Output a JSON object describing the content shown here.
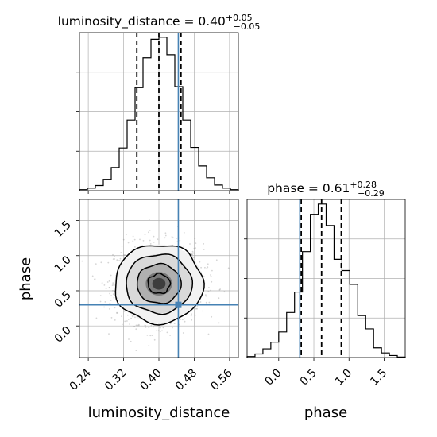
{
  "chart_data": [
    {
      "type": "histogram",
      "panel": "luminosity_distance marginal",
      "title_param": "luminosity_distance",
      "title_value": "0.40",
      "title_err_plus": "+0.05",
      "title_err_minus": "−0.05",
      "xlim": [
        0.22,
        0.58
      ],
      "bin_edges": [
        0.22,
        0.238,
        0.256,
        0.274,
        0.292,
        0.31,
        0.328,
        0.346,
        0.364,
        0.382,
        0.4,
        0.418,
        0.436,
        0.454,
        0.472,
        0.49,
        0.508,
        0.526,
        0.544,
        0.562,
        0.58
      ],
      "counts": [
        2,
        5,
        10,
        22,
        45,
        83,
        137,
        200,
        258,
        294,
        298,
        264,
        202,
        137,
        84,
        48,
        25,
        11,
        5,
        2
      ],
      "quantiles": [
        0.35,
        0.4,
        0.45
      ],
      "truth": 0.444
    },
    {
      "type": "histogram",
      "panel": "phase marginal",
      "title_param": "phase",
      "title_value": "0.61",
      "title_err_plus": "+0.28",
      "title_err_minus": "−0.29",
      "xlim": [
        -0.45,
        1.8
      ],
      "bin_edges": [
        -0.45,
        -0.3375,
        -0.225,
        -0.1125,
        0.0,
        0.1125,
        0.225,
        0.3375,
        0.45,
        0.5625,
        0.675,
        0.7875,
        0.9,
        1.0125,
        1.125,
        1.2375,
        1.35,
        1.4625,
        1.575,
        1.6875,
        1.8
      ],
      "counts": [
        2,
        7,
        17,
        30,
        50,
        88,
        128,
        207,
        280,
        300,
        258,
        192,
        170,
        143,
        82,
        56,
        19,
        9,
        4,
        1
      ],
      "quantiles": [
        0.32,
        0.61,
        0.89
      ],
      "truth": 0.3
    },
    {
      "type": "contour-2d",
      "panel": "joint luminosity_distance vs phase",
      "x": "luminosity_distance",
      "y": "phase",
      "xlim": [
        0.22,
        0.58
      ],
      "ylim": [
        -0.45,
        1.8
      ],
      "center": [
        0.4,
        0.6
      ],
      "sigma": [
        0.05,
        0.28
      ],
      "truth": [
        0.444,
        0.3
      ]
    }
  ],
  "axes": {
    "x_bottom_left_label": "luminosity_distance",
    "x_bottom_right_label": "phase",
    "y_left_label": "phase",
    "x_ticks_luminosity": [
      "0.24",
      "0.32",
      "0.40",
      "0.48",
      "0.56"
    ],
    "x_ticks_luminosity_values": [
      0.24,
      0.32,
      0.4,
      0.48,
      0.56
    ],
    "y_ticks_phase": [
      "0.0",
      "0.5",
      "1.0",
      "1.5"
    ],
    "y_ticks_phase_values": [
      0.0,
      0.5,
      1.0,
      1.5
    ],
    "x_ticks_phase": [
      "0.0",
      "0.5",
      "1.0",
      "1.5"
    ],
    "x_ticks_phase_values": [
      0.0,
      0.5,
      1.0,
      1.5
    ]
  },
  "colors": {
    "truth": "#4682b4",
    "hist": "#000000",
    "grid": "#b0b0b0"
  }
}
